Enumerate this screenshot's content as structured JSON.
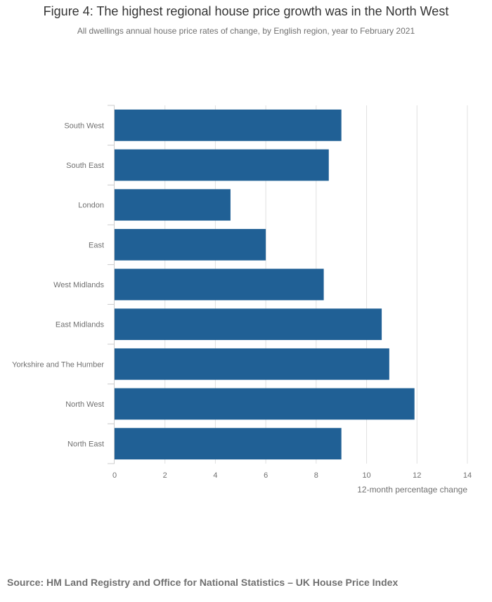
{
  "chart_data": {
    "type": "bar",
    "orientation": "horizontal",
    "title": "Figure 4: The highest regional house price growth was in the North West",
    "subtitle": "All dwellings annual house price rates of change, by English region, year to February 2021",
    "categories": [
      "South West",
      "South East",
      "London",
      "East",
      "West Midlands",
      "East Midlands",
      "Yorkshire and The Humber",
      "North West",
      "North East"
    ],
    "values": [
      9.0,
      8.5,
      4.6,
      6.0,
      8.3,
      10.6,
      10.9,
      11.9,
      9.0
    ],
    "xlabel": "12-month percentage change",
    "ylabel": "",
    "xlim": [
      0,
      14
    ],
    "xticks": [
      0,
      2,
      4,
      6,
      8,
      10,
      12,
      14
    ],
    "grid": true,
    "bar_color": "#206095",
    "grid_color": "#e0e0e0"
  },
  "source": "Source: HM Land Registry and Office for National Statistics – UK House Price Index"
}
